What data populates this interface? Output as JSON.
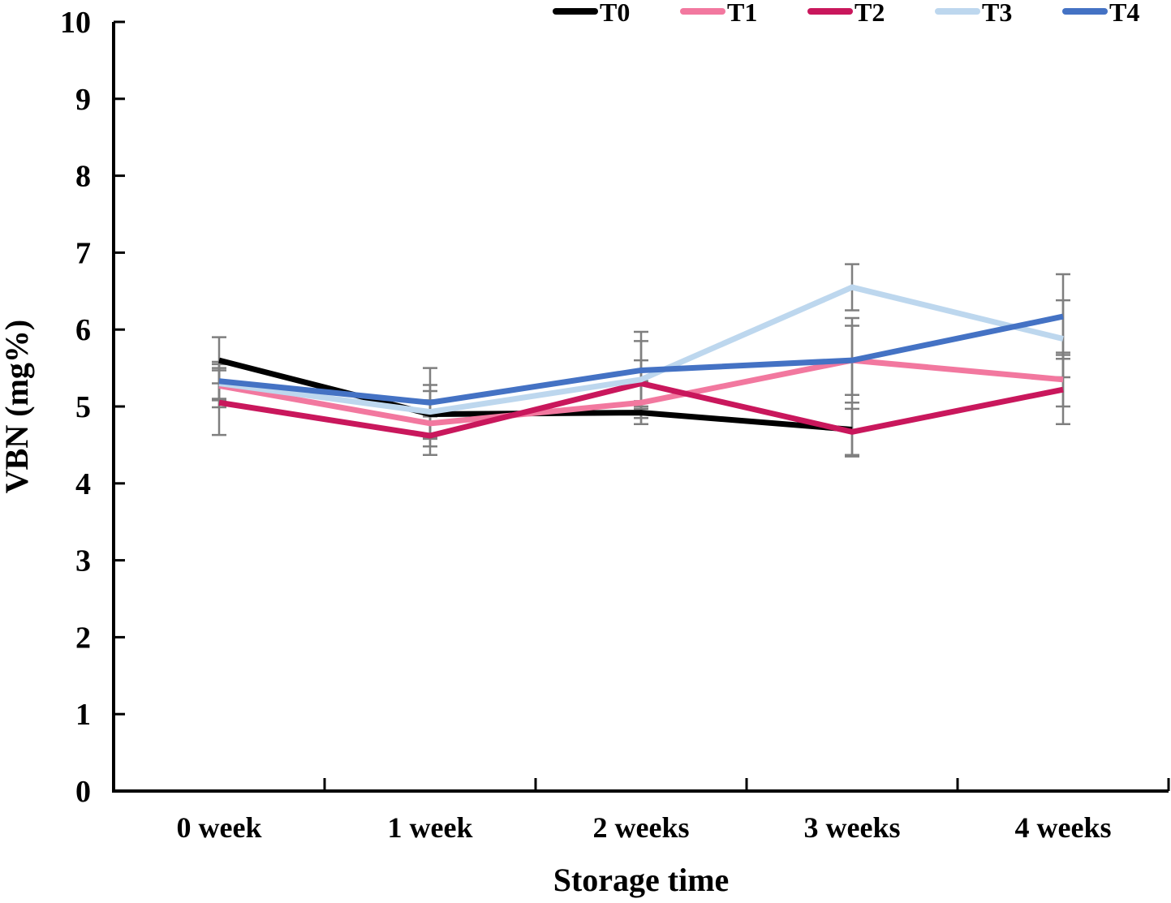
{
  "chart_data": {
    "type": "line",
    "title": "",
    "xlabel": "Storage time",
    "ylabel": "VBN (mg%)",
    "categories": [
      "0 week",
      "1 week",
      "2 weeks",
      "3 weeks",
      "4 weeks"
    ],
    "ylim": [
      0,
      10
    ],
    "ytick_interval": 1,
    "ytick_labels": [
      "0",
      "1",
      "2",
      "3",
      "4",
      "5",
      "6",
      "7",
      "8",
      "9",
      "10"
    ],
    "grid": false,
    "legend_position": "top",
    "legend_entries": [
      "T0",
      "T1",
      "T2",
      "T3",
      "T4"
    ],
    "series": [
      {
        "name": "T0",
        "color": "#000000",
        "values": [
          5.6,
          4.9,
          4.92,
          4.7,
          null
        ],
        "errors": [
          0.3,
          0.3,
          0.15,
          0.35,
          null
        ]
      },
      {
        "name": "T1",
        "color": "#F2789F",
        "values": [
          5.27,
          4.78,
          5.05,
          5.6,
          5.35
        ],
        "errors": [
          0.28,
          0.3,
          0.28,
          0.45,
          0.35
        ]
      },
      {
        "name": "T2",
        "color": "#C9175C",
        "values": [
          5.05,
          4.62,
          5.3,
          4.67,
          5.22
        ],
        "errors": [
          0.42,
          0.25,
          0.3,
          0.3,
          0.45
        ]
      },
      {
        "name": "T3",
        "color": "#BDD7EE",
        "values": [
          5.3,
          4.93,
          5.35,
          6.55,
          5.88
        ],
        "errors": [
          0.2,
          0.35,
          0.5,
          0.3,
          0.5
        ]
      },
      {
        "name": "T4",
        "color": "#4472C4",
        "values": [
          5.33,
          5.05,
          5.47,
          5.6,
          6.17
        ],
        "errors": [
          0.25,
          0.45,
          0.5,
          0.55,
          0.55
        ]
      }
    ],
    "error_bar_color": "#7F7F7F",
    "axis_color": "#000000"
  }
}
